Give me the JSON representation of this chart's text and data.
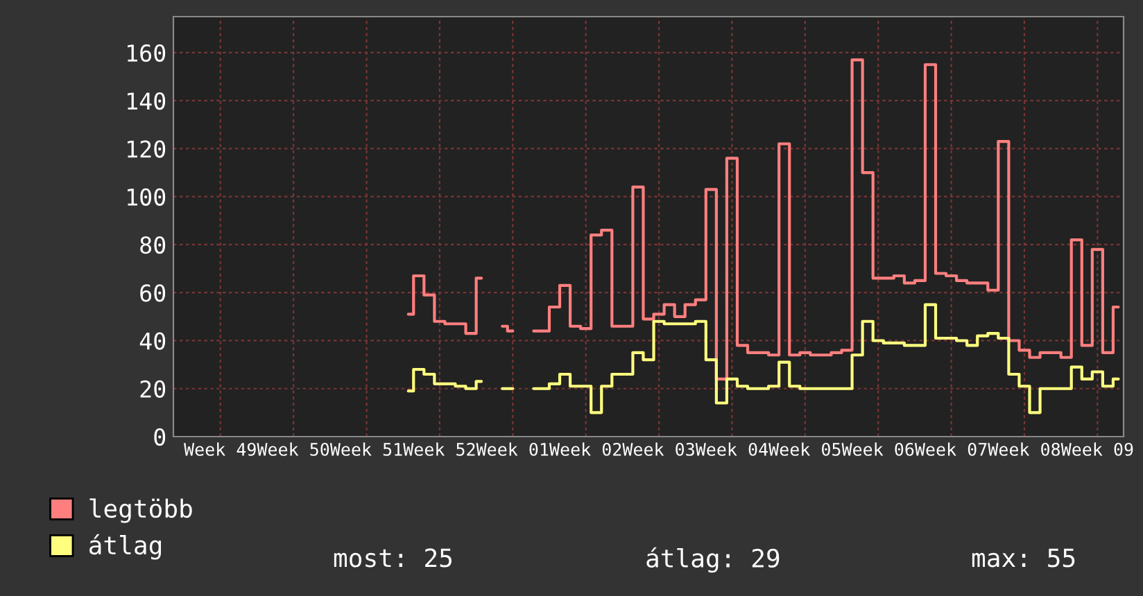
{
  "chart_data": {
    "type": "step",
    "categories": [
      null,
      null,
      null,
      null,
      "Week 49",
      null,
      null,
      null,
      null,
      null,
      null,
      "Week 50",
      null,
      null,
      null,
      null,
      null,
      null,
      "Week 51",
      null,
      null,
      null,
      null,
      null,
      null,
      "Week 52",
      null,
      null,
      null,
      null,
      null,
      null,
      "Week 01",
      null,
      null,
      null,
      null,
      null,
      null,
      "Week 02",
      null,
      null,
      null,
      null,
      null,
      null,
      "Week 03",
      null,
      null,
      null,
      null,
      null,
      null,
      "Week 04",
      null,
      null,
      null,
      null,
      null,
      null,
      "Week 05",
      null,
      null,
      null,
      null,
      null,
      null,
      "Week 06",
      null,
      null,
      null,
      null,
      null,
      null,
      "Week 07",
      null,
      null,
      null,
      null,
      null,
      null,
      "Week 08",
      null,
      null,
      null,
      null,
      null,
      null,
      "Week 09",
      null,
      null
    ],
    "series": [
      {
        "name": "legtöbb",
        "color": "#ff7f7f",
        "values": [
          null,
          null,
          null,
          null,
          null,
          null,
          null,
          null,
          null,
          null,
          null,
          null,
          null,
          null,
          null,
          null,
          null,
          null,
          null,
          null,
          null,
          null,
          51,
          67,
          59,
          48,
          47,
          47,
          43,
          66,
          null,
          46,
          44,
          null,
          44,
          44,
          54,
          63,
          46,
          45,
          84,
          86,
          46,
          46,
          104,
          49,
          51,
          55,
          50,
          55,
          57,
          103,
          24,
          116,
          38,
          35,
          35,
          34,
          122,
          34,
          35,
          34,
          34,
          35,
          36,
          157,
          110,
          66,
          66,
          67,
          64,
          65,
          155,
          68,
          67,
          65,
          64,
          64,
          61,
          123,
          40,
          36,
          33,
          35,
          35,
          33,
          82,
          38,
          78,
          35,
          54
        ]
      },
      {
        "name": "átlag",
        "color": "#ffff7f",
        "values": [
          null,
          null,
          null,
          null,
          null,
          null,
          null,
          null,
          null,
          null,
          null,
          null,
          null,
          null,
          null,
          null,
          null,
          null,
          null,
          null,
          null,
          null,
          19,
          28,
          26,
          22,
          22,
          21,
          20,
          23,
          null,
          20,
          20,
          null,
          20,
          20,
          22,
          26,
          21,
          21,
          10,
          21,
          26,
          26,
          35,
          32,
          48,
          47,
          47,
          47,
          48,
          32,
          14,
          24,
          21,
          20,
          20,
          21,
          31,
          21,
          20,
          20,
          20,
          20,
          20,
          34,
          48,
          40,
          39,
          39,
          38,
          38,
          55,
          41,
          41,
          40,
          38,
          42,
          43,
          41,
          26,
          21,
          10,
          20,
          20,
          20,
          29,
          24,
          27,
          21,
          24
        ]
      }
    ],
    "ylim": [
      0,
      175
    ],
    "yticks": [
      0,
      20,
      40,
      60,
      80,
      100,
      120,
      140,
      160
    ],
    "grid": true,
    "legend": "bottom",
    "annotations": [
      "most: 25",
      "átlag: 29",
      "max: 55"
    ]
  }
}
